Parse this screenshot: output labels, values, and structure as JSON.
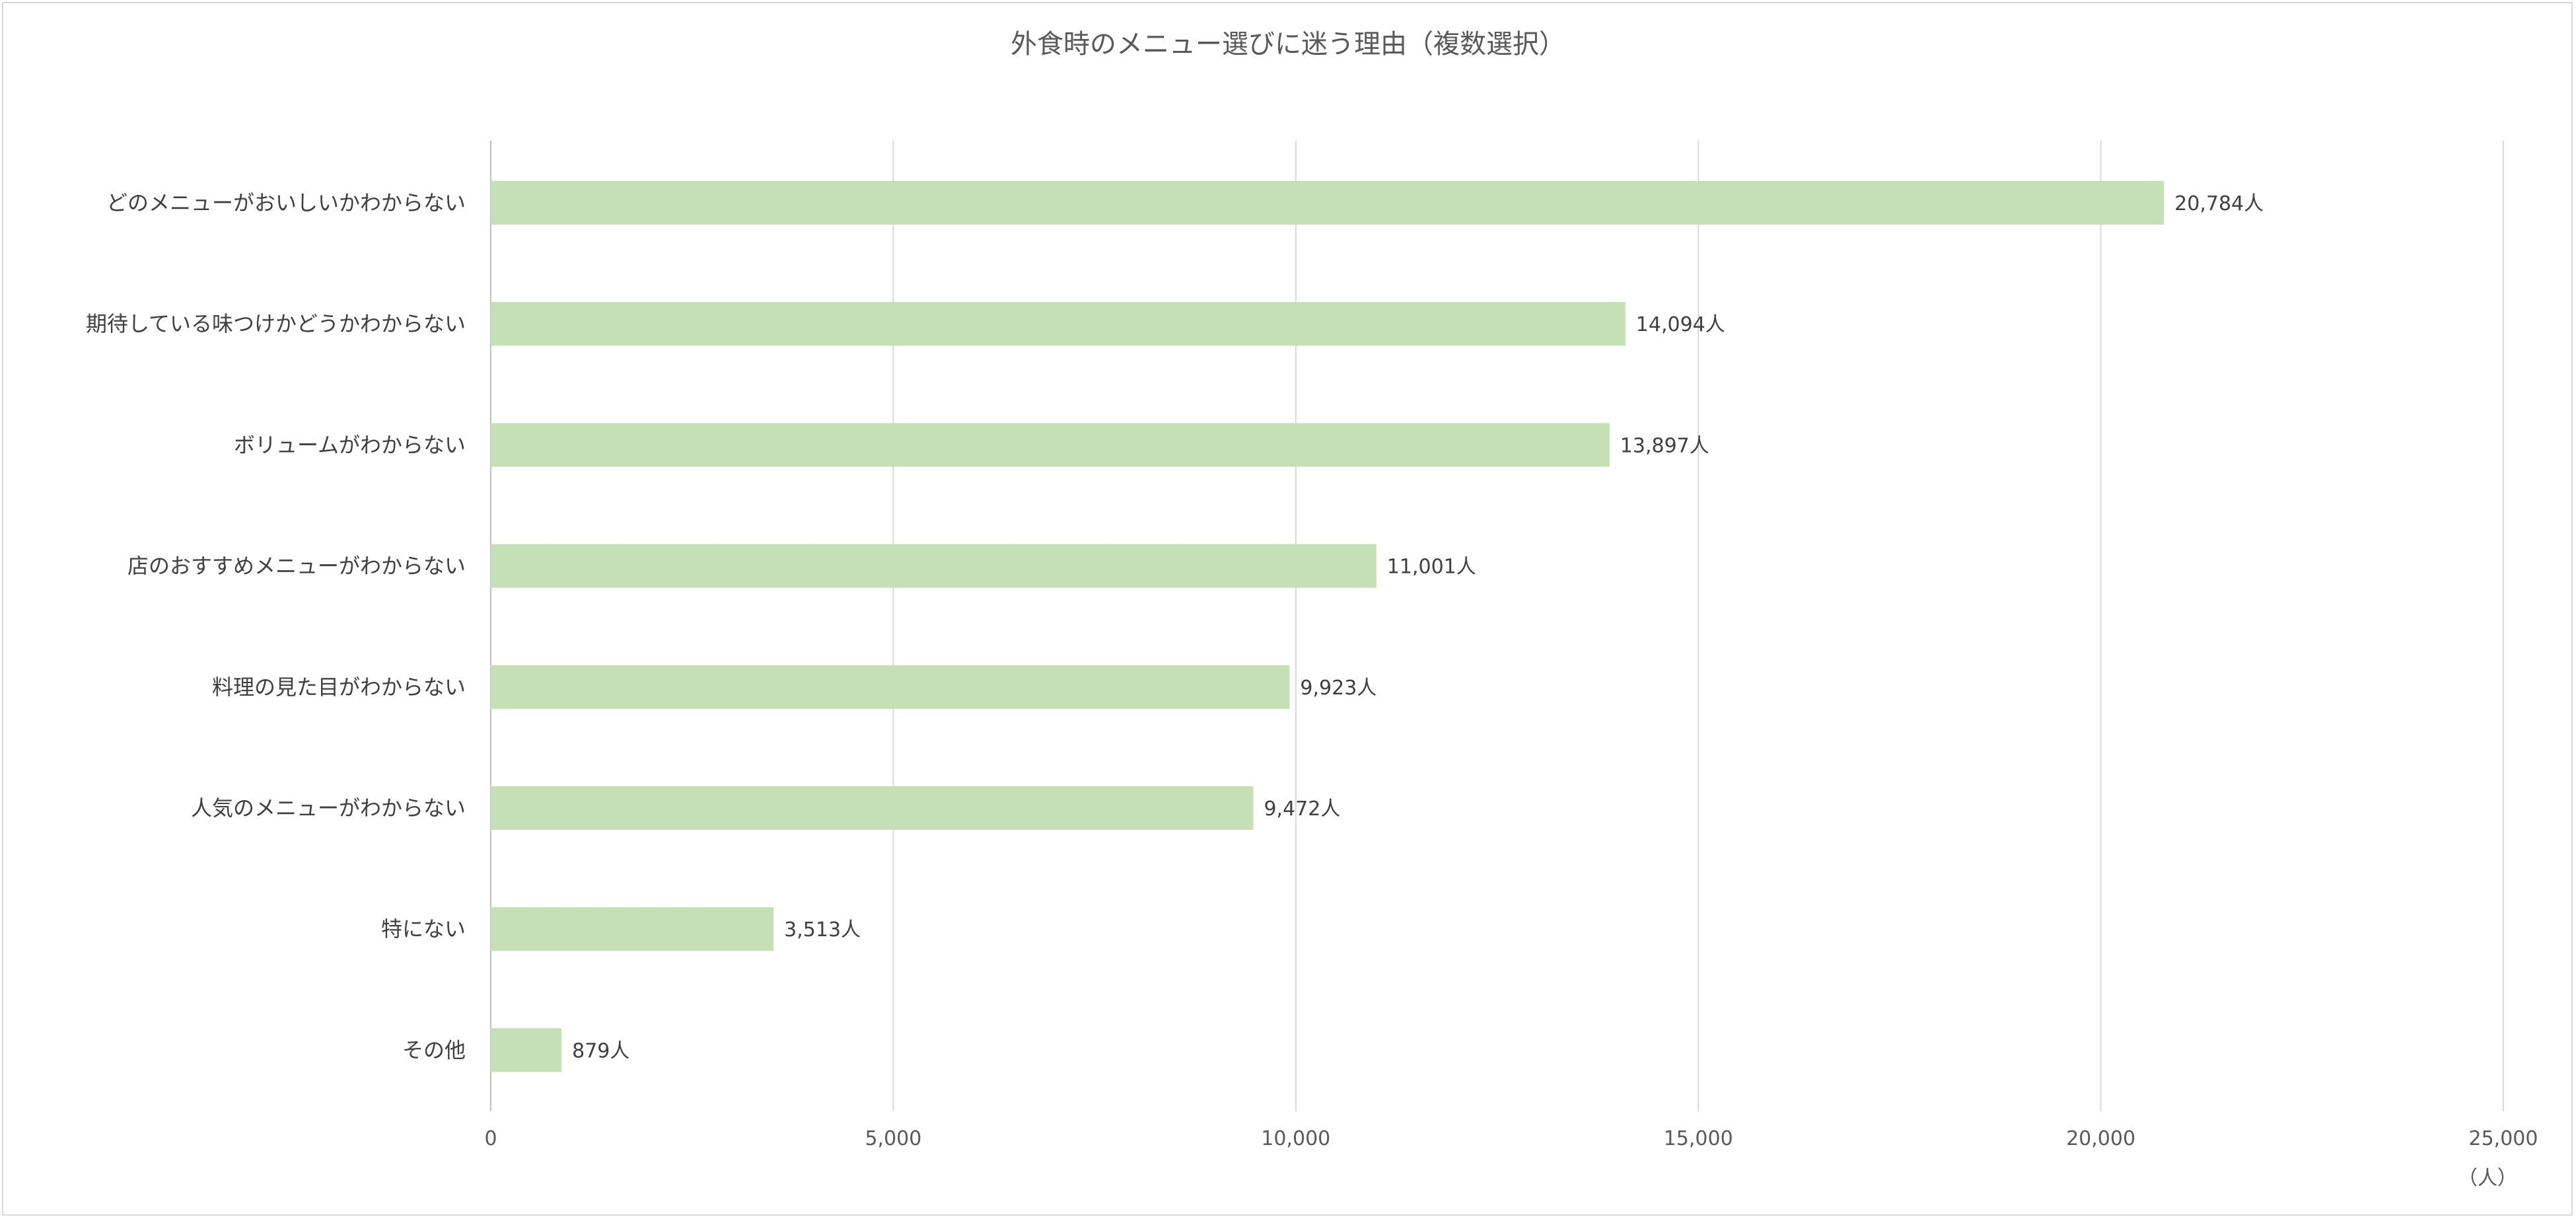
{
  "chart_data": {
    "type": "bar",
    "orientation": "horizontal",
    "title": "外食時のメニュー選びに迷う理由（複数選択）",
    "unit_label": "（人）",
    "value_suffix": "人",
    "categories": [
      "どのメニューがおいしいかわからない",
      "期待している味つけかどうかわからない",
      "ボリュームがわからない",
      "店のおすすめメニューがわからない",
      "料理の見た目がわからない",
      "人気のメニューがわからない",
      "特にない",
      "その他"
    ],
    "values": [
      20784,
      14094,
      13897,
      11001,
      9923,
      9472,
      3513,
      879
    ],
    "data_labels": [
      "20,784人",
      "14,094人",
      "13,897人",
      "11,001人",
      "9,923人",
      "9,472人",
      "3,513人",
      "879人"
    ],
    "xlim": [
      0,
      25000
    ],
    "xticks": [
      0,
      5000,
      10000,
      15000,
      20000,
      25000
    ],
    "xtick_labels": [
      "0",
      "5,000",
      "10,000",
      "15,000",
      "20,000",
      "25,000"
    ],
    "grid": true,
    "legend": "none",
    "bar_color": "#c5e0b4"
  }
}
